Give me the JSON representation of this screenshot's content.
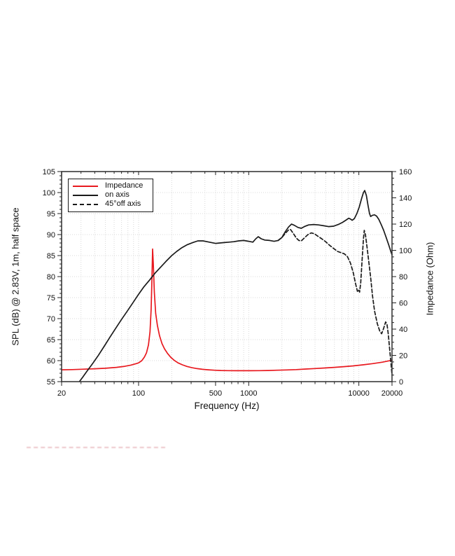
{
  "labels": {
    "xlabel": "Frequency (Hz)",
    "ylabel_left": "SPL (dB) @ 2.83V, 1m, half space",
    "ylabel_right": "Impedance (Ohm)"
  },
  "legend": {
    "items": [
      {
        "label": "Impedance",
        "color": "#e8191f",
        "dash": "solid"
      },
      {
        "label": "on axis",
        "color": "#1a1a1a",
        "dash": "solid"
      },
      {
        "label": "45°off axis",
        "color": "#1a1a1a",
        "dash": "dashed"
      }
    ]
  },
  "colors": {
    "impedance_red": "#e8191f",
    "curve_black": "#1a1a1a",
    "grid": "#d8d8d8",
    "frame": "#3a3a3a",
    "tick": "#222222",
    "text": "#111111"
  },
  "chart_data": {
    "type": "line",
    "x_scale": "log",
    "x_range": [
      20,
      20000
    ],
    "x_ticks_labeled": [
      20,
      100,
      500,
      1000,
      10000,
      20000
    ],
    "xlabel": "Frequency (Hz)",
    "y_left": {
      "label": "SPL (dB) @ 2.83V, 1m, half space",
      "range": [
        55,
        105
      ],
      "tick_step": 5
    },
    "y_right": {
      "label": "Impedance (Ohm)",
      "range": [
        0,
        160
      ],
      "tick_step": 20
    },
    "grid": "dotted, vertical at log minor/major ticks, horizontal every 5 dB",
    "legend_position": "upper left",
    "series": [
      {
        "name": "Impedance",
        "axis": "right",
        "style": "solid",
        "color": "#e8191f",
        "unit": "Ohm",
        "points": [
          [
            20,
            9.0
          ],
          [
            25,
            9.2
          ],
          [
            32,
            9.5
          ],
          [
            40,
            9.8
          ],
          [
            50,
            10.2
          ],
          [
            63,
            10.9
          ],
          [
            75,
            11.7
          ],
          [
            85,
            12.6
          ],
          [
            95,
            13.7
          ],
          [
            100,
            14.3
          ],
          [
            107,
            16.0
          ],
          [
            113,
            18.7
          ],
          [
            118,
            22.0
          ],
          [
            123,
            28.0
          ],
          [
            127,
            38.0
          ],
          [
            130,
            55.0
          ],
          [
            132,
            75.0
          ],
          [
            134,
            101.0
          ],
          [
            136,
            90.0
          ],
          [
            139,
            68.0
          ],
          [
            143,
            52.0
          ],
          [
            148,
            43.0
          ],
          [
            155,
            35.0
          ],
          [
            163,
            29.0
          ],
          [
            172,
            25.0
          ],
          [
            183,
            21.5
          ],
          [
            196,
            18.5
          ],
          [
            210,
            16.3
          ],
          [
            228,
            14.3
          ],
          [
            250,
            12.8
          ],
          [
            275,
            11.6
          ],
          [
            305,
            10.6
          ],
          [
            340,
            9.9
          ],
          [
            380,
            9.4
          ],
          [
            430,
            9.0
          ],
          [
            490,
            8.7
          ],
          [
            560,
            8.5
          ],
          [
            650,
            8.4
          ],
          [
            760,
            8.3
          ],
          [
            900,
            8.3
          ],
          [
            1050,
            8.3
          ],
          [
            1250,
            8.4
          ],
          [
            1500,
            8.5
          ],
          [
            1800,
            8.7
          ],
          [
            2200,
            8.9
          ],
          [
            2700,
            9.2
          ],
          [
            3300,
            9.6
          ],
          [
            4000,
            10.0
          ],
          [
            4900,
            10.4
          ],
          [
            6000,
            10.9
          ],
          [
            7300,
            11.4
          ],
          [
            8900,
            12.0
          ],
          [
            10900,
            12.8
          ],
          [
            13300,
            13.7
          ],
          [
            16200,
            14.8
          ],
          [
            19800,
            16.2
          ],
          [
            20000,
            16.3
          ]
        ]
      },
      {
        "name": "on axis",
        "axis": "left",
        "style": "solid",
        "color": "#1a1a1a",
        "unit": "dB",
        "points": [
          [
            29,
            55.0
          ],
          [
            31,
            56.0
          ],
          [
            34,
            57.5
          ],
          [
            38,
            59.2
          ],
          [
            43,
            61.2
          ],
          [
            49,
            63.5
          ],
          [
            55,
            65.6
          ],
          [
            62,
            67.7
          ],
          [
            70,
            69.8
          ],
          [
            79,
            71.8
          ],
          [
            89,
            73.8
          ],
          [
            100,
            75.8
          ],
          [
            112,
            77.6
          ],
          [
            126,
            79.2
          ],
          [
            141,
            80.8
          ],
          [
            158,
            82.2
          ],
          [
            177,
            83.6
          ],
          [
            200,
            85.0
          ],
          [
            222,
            86.0
          ],
          [
            248,
            86.9
          ],
          [
            277,
            87.6
          ],
          [
            310,
            88.1
          ],
          [
            345,
            88.5
          ],
          [
            385,
            88.5
          ],
          [
            420,
            88.3
          ],
          [
            460,
            88.1
          ],
          [
            500,
            87.9
          ],
          [
            545,
            88.0
          ],
          [
            600,
            88.1
          ],
          [
            660,
            88.2
          ],
          [
            730,
            88.3
          ],
          [
            810,
            88.5
          ],
          [
            900,
            88.6
          ],
          [
            1000,
            88.4
          ],
          [
            1090,
            88.2
          ],
          [
            1160,
            89.0
          ],
          [
            1220,
            89.5
          ],
          [
            1300,
            89.0
          ],
          [
            1400,
            88.7
          ],
          [
            1550,
            88.6
          ],
          [
            1700,
            88.4
          ],
          [
            1850,
            88.6
          ],
          [
            2000,
            89.3
          ],
          [
            2150,
            90.7
          ],
          [
            2300,
            91.8
          ],
          [
            2450,
            92.5
          ],
          [
            2600,
            92.2
          ],
          [
            2800,
            91.7
          ],
          [
            3000,
            91.5
          ],
          [
            3200,
            91.9
          ],
          [
            3500,
            92.3
          ],
          [
            3900,
            92.4
          ],
          [
            4300,
            92.3
          ],
          [
            4800,
            92.1
          ],
          [
            5300,
            91.9
          ],
          [
            5900,
            92.0
          ],
          [
            6500,
            92.4
          ],
          [
            7100,
            92.9
          ],
          [
            7700,
            93.5
          ],
          [
            8100,
            93.9
          ],
          [
            8400,
            93.7
          ],
          [
            8700,
            93.4
          ],
          [
            9100,
            93.8
          ],
          [
            9600,
            95.0
          ],
          [
            10100,
            96.6
          ],
          [
            10600,
            98.6
          ],
          [
            11000,
            100.0
          ],
          [
            11300,
            100.5
          ],
          [
            11700,
            99.3
          ],
          [
            12100,
            97.0
          ],
          [
            12500,
            95.0
          ],
          [
            12800,
            94.3
          ],
          [
            13300,
            94.6
          ],
          [
            13900,
            94.7
          ],
          [
            14500,
            94.4
          ],
          [
            15200,
            93.6
          ],
          [
            16000,
            92.3
          ],
          [
            16800,
            91.0
          ],
          [
            17700,
            89.3
          ],
          [
            18700,
            87.5
          ],
          [
            19500,
            86.0
          ],
          [
            20000,
            85.2
          ]
        ]
      },
      {
        "name": "45°off axis",
        "axis": "left",
        "style": "dashed",
        "color": "#1a1a1a",
        "unit": "dB",
        "points": [
          [
            1850,
            88.6
          ],
          [
            2000,
            89.3
          ],
          [
            2150,
            90.3
          ],
          [
            2300,
            91.1
          ],
          [
            2400,
            91.2
          ],
          [
            2550,
            90.2
          ],
          [
            2700,
            89.2
          ],
          [
            2850,
            88.6
          ],
          [
            3000,
            88.5
          ],
          [
            3200,
            89.2
          ],
          [
            3450,
            90.0
          ],
          [
            3700,
            90.4
          ],
          [
            3950,
            90.2
          ],
          [
            4250,
            89.6
          ],
          [
            4600,
            89.0
          ],
          [
            5000,
            88.3
          ],
          [
            5400,
            87.5
          ],
          [
            5900,
            86.7
          ],
          [
            6400,
            86.0
          ],
          [
            6900,
            85.7
          ],
          [
            7400,
            85.4
          ],
          [
            7900,
            84.7
          ],
          [
            8400,
            83.2
          ],
          [
            8900,
            80.9
          ],
          [
            9300,
            78.5
          ],
          [
            9700,
            76.5
          ],
          [
            9950,
            76.9
          ],
          [
            10150,
            76.3
          ],
          [
            10400,
            78.5
          ],
          [
            10700,
            84.0
          ],
          [
            11000,
            89.0
          ],
          [
            11200,
            91.0
          ],
          [
            11500,
            89.8
          ],
          [
            11900,
            86.8
          ],
          [
            12300,
            83.6
          ],
          [
            12800,
            79.8
          ],
          [
            13300,
            75.5
          ],
          [
            13900,
            71.8
          ],
          [
            14700,
            68.8
          ],
          [
            15500,
            67.0
          ],
          [
            16100,
            66.4
          ],
          [
            16800,
            67.7
          ],
          [
            17500,
            69.2
          ],
          [
            18000,
            68.7
          ],
          [
            18500,
            66.3
          ],
          [
            19000,
            63.0
          ],
          [
            19500,
            59.8
          ],
          [
            20000,
            56.6
          ]
        ]
      }
    ]
  }
}
